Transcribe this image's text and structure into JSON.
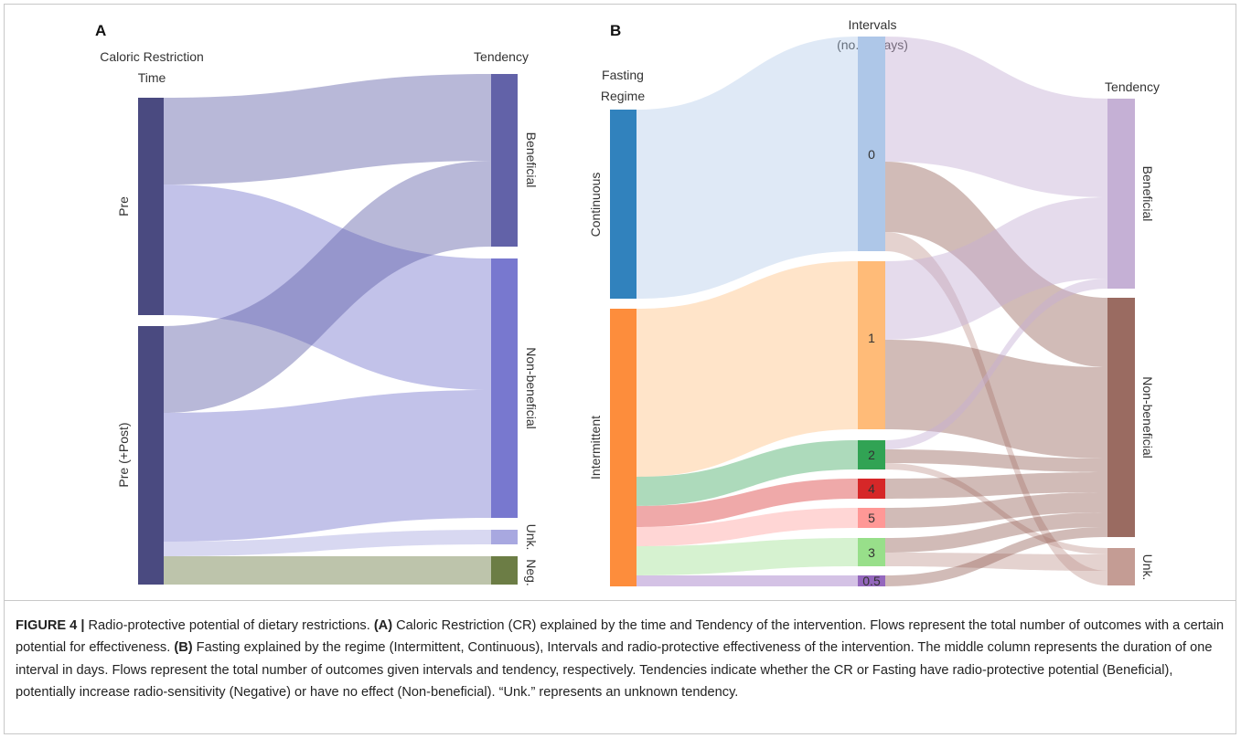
{
  "panel_a": {
    "letter": "A",
    "col1_title_line1": "Caloric Restriction",
    "col1_title_line2": "Time",
    "col2_title": "Tendency",
    "nodes": {
      "pre": "Pre",
      "prepost": "Pre (+Post)",
      "beneficial": "Beneficial",
      "nonbeneficial": "Non-beneficial",
      "unk": "Unk.",
      "neg": "Neg."
    }
  },
  "panel_b": {
    "letter": "B",
    "col1_title_line1": "Fasting",
    "col1_title_line2": "Regime",
    "col2_title_line1": "Intervals",
    "col2_title_line2": "(no. of days)",
    "col3_title": "Tendency",
    "nodes": {
      "continuous": "Continuous",
      "intermittent": "Intermittent",
      "i0": "0",
      "i1": "1",
      "i2": "2",
      "i4": "4",
      "i5": "5",
      "i3": "3",
      "i05": "0.5",
      "beneficial": "Beneficial",
      "nonbeneficial": "Non-beneficial",
      "unk": "Unk."
    }
  },
  "caption": {
    "fig_label": "FIGURE 4 |",
    "intro": " Radio-protective potential of dietary restrictions. ",
    "a_label": "(A)",
    "a_text": " Caloric Restriction (CR) explained by the time and Tendency of the intervention. Flows represent the total number of outcomes with a certain potential for effectiveness. ",
    "b_label": "(B)",
    "b_text": " Fasting explained by the regime (Intermittent, Continuous), Intervals and radio-protective effectiveness of the intervention. The middle column represents the duration of one interval in days. Flows represent the total number of outcomes given intervals and tendency, respectively. Tendencies indicate whether the CR or Fasting have radio-protective potential (Beneficial), potentially increase radio-sensitivity (Negative) or have no effect (Non-beneficial). “Unk.” represents an unknown tendency."
  },
  "colors": {
    "a_time_node": "#4a4a80",
    "a_beneficial": "#6262a8",
    "a_nonbeneficial": "#7878cf",
    "a_unk": "#a8a8e0",
    "a_neg": "#6c7d45",
    "b_continuous": "#3182bd",
    "b_intermittent": "#fd8d3c",
    "b_i0": "#aec7e8",
    "b_i1": "#ffbb78",
    "b_i2": "#31a354",
    "b_i4": "#d62728",
    "b_i5": "#ff9896",
    "b_i3": "#98df8a",
    "b_i05": "#9467bd",
    "b_beneficial": "#c5b0d5",
    "b_nonbeneficial": "#8c564b",
    "b_unk": "#c49c94"
  }
}
